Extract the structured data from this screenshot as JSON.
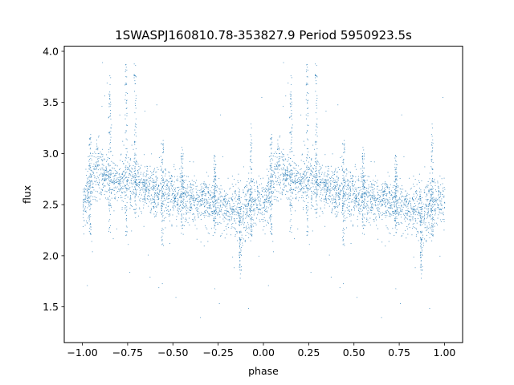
{
  "chart_data": {
    "type": "scatter",
    "title": "1SWASPJ160810.78-353827.9 Period 5950923.5s",
    "xlabel": "phase",
    "ylabel": "flux",
    "xlim": [
      -1.1,
      1.1
    ],
    "ylim": [
      1.15,
      4.05
    ],
    "x_ticks": [
      -1.0,
      -0.75,
      -0.5,
      -0.25,
      0.0,
      0.25,
      0.5,
      0.75,
      1.0
    ],
    "x_tick_labels": [
      "−1.00",
      "−0.75",
      "−0.50",
      "−0.25",
      "0.00",
      "0.25",
      "0.50",
      "0.75",
      "1.00"
    ],
    "y_ticks": [
      1.5,
      2.0,
      2.5,
      3.0,
      3.5,
      4.0
    ],
    "y_tick_labels": [
      "1.5",
      "2.0",
      "2.5",
      "3.0",
      "3.5",
      "4.0"
    ],
    "grid": false,
    "legend": "none",
    "marker_color": "#1f77b4",
    "folding": "phase-folded light curve; the pattern for phase 0 to 1 repeats for phase -1 to 0",
    "light_curve_profile": {
      "phase": [
        0.0,
        0.04,
        0.08,
        0.12,
        0.16,
        0.2,
        0.24,
        0.28,
        0.32,
        0.36,
        0.4,
        0.44,
        0.48,
        0.52,
        0.56,
        0.6,
        0.64,
        0.68,
        0.72,
        0.76,
        0.8,
        0.84,
        0.88,
        0.92,
        0.96,
        1.0
      ],
      "median_flux": [
        2.5,
        2.65,
        2.85,
        2.78,
        2.75,
        2.72,
        2.72,
        2.7,
        2.68,
        2.65,
        2.62,
        2.62,
        2.6,
        2.6,
        2.58,
        2.55,
        2.55,
        2.55,
        2.52,
        2.5,
        2.45,
        2.45,
        2.42,
        2.5,
        2.55,
        2.5
      ],
      "scatter": [
        0.12,
        0.12,
        0.15,
        0.1,
        0.12,
        0.1,
        0.12,
        0.15,
        0.1,
        0.1,
        0.12,
        0.15,
        0.12,
        0.12,
        0.12,
        0.1,
        0.12,
        0.12,
        0.12,
        0.12,
        0.12,
        0.15,
        0.15,
        0.15,
        0.12,
        0.12
      ]
    },
    "vertical_streaks": [
      {
        "phase": 0.04,
        "flux_min": 2.2,
        "flux_max": 3.2
      },
      {
        "phase": 0.15,
        "flux_min": 2.2,
        "flux_max": 3.8
      },
      {
        "phase": 0.24,
        "flux_min": 2.2,
        "flux_max": 3.9
      },
      {
        "phase": 0.29,
        "flux_min": 2.3,
        "flux_max": 3.9
      },
      {
        "phase": 0.44,
        "flux_min": 2.1,
        "flux_max": 3.2
      },
      {
        "phase": 0.55,
        "flux_min": 2.2,
        "flux_max": 3.1
      },
      {
        "phase": 0.73,
        "flux_min": 2.2,
        "flux_max": 3.0
      },
      {
        "phase": 0.87,
        "flux_min": 1.75,
        "flux_max": 2.6
      },
      {
        "phase": 0.93,
        "flux_min": 2.2,
        "flux_max": 3.3
      }
    ]
  }
}
